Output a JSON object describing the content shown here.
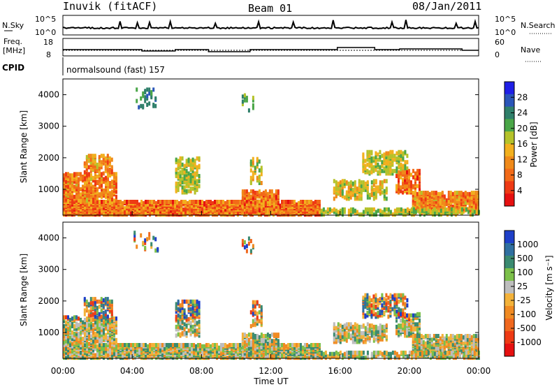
{
  "header": {
    "station": "Inuvik (fitACF)",
    "beam": "Beam 01",
    "date": "08/Jan/2011"
  },
  "top_panel": {
    "left_label": "N.Sky",
    "right_label": "N.Search",
    "left_ticks": [
      "10^5",
      "10^0"
    ],
    "right_ticks": [
      "10^5",
      "10^0"
    ]
  },
  "freq_panel": {
    "left_label_1": "Freq.",
    "left_label_2": "[MHz]",
    "right_label": "Nave",
    "left_ticks": [
      "18",
      "8"
    ],
    "right_ticks": [
      "60",
      "0"
    ],
    "cpid_label": "CPID",
    "cpid_text": "normalsound (fast) 157"
  },
  "chart_data": [
    {
      "type": "heatmap",
      "title": "",
      "ylabel": "Slant Range [km]",
      "xlabel": "",
      "ylim": [
        180,
        4500
      ],
      "yticks": [
        "1000",
        "2000",
        "3000",
        "4000"
      ],
      "colorbar": {
        "label": "Power [dB]",
        "ticks": [
          "4",
          "8",
          "12",
          "16",
          "20",
          "24",
          "28"
        ],
        "colors": [
          "#1f1fe6",
          "#2a55b8",
          "#2f7f6a",
          "#4aa648",
          "#b5c22a",
          "#f2b01e",
          "#f08a1a",
          "#f26a18",
          "#ee3a14",
          "#e61010"
        ]
      }
    },
    {
      "type": "heatmap",
      "title": "",
      "ylabel": "Slant Range [km]",
      "xlabel": "Time UT",
      "ylim": [
        180,
        4500
      ],
      "xticks": [
        "00:00",
        "04:00",
        "08:00",
        "12:00",
        "16:00",
        "20:00",
        "00:00"
      ],
      "yticks": [
        "1000",
        "2000",
        "3000",
        "4000"
      ],
      "colorbar": {
        "label": "Velocity [m s⁻¹]",
        "ticks": [
          "1000",
          "500",
          "100",
          "25",
          "-25",
          "-100",
          "-500",
          "-1000"
        ],
        "colors": [
          "#1e3fc8",
          "#2f6fa0",
          "#3a8a70",
          "#7cc04a",
          "#bdbdbd",
          "#f3b23a",
          "#f08a22",
          "#f0681e",
          "#ee3a14",
          "#e61010"
        ]
      }
    }
  ]
}
